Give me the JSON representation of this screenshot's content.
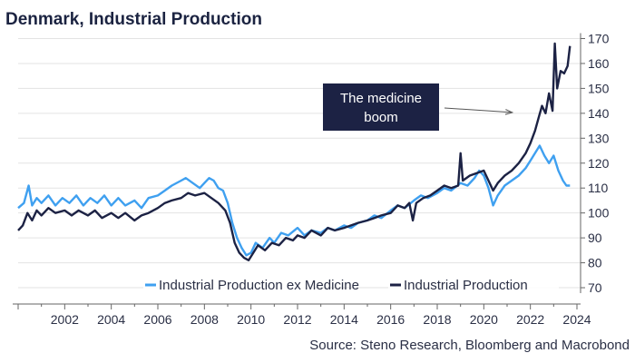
{
  "chart_data": {
    "type": "line",
    "title": "Denmark, Industrial Production",
    "source": "Source: Steno Research, Bloomberg and Macrobond",
    "xlim": [
      2000.0,
      2024.0
    ],
    "ylim": [
      66,
      172
    ],
    "x_ticks": [
      "2002",
      "2004",
      "2006",
      "2008",
      "2010",
      "2012",
      "2014",
      "2016",
      "2018",
      "2020",
      "2022",
      "2024"
    ],
    "y_ticks": [
      "70",
      "80",
      "90",
      "100",
      "110",
      "120",
      "130",
      "140",
      "150",
      "160",
      "170"
    ],
    "grid": "horizontal",
    "legend_position": "bottom-center",
    "annotation": {
      "lines": [
        "The medicine",
        "boom"
      ],
      "x": 2021.3,
      "y": 140
    },
    "series": [
      {
        "name": "Industrial Production ex Medicine",
        "color": "#3fa0f0",
        "points": [
          [
            2000.0,
            102
          ],
          [
            2000.25,
            104
          ],
          [
            2000.45,
            111
          ],
          [
            2000.6,
            103
          ],
          [
            2000.8,
            106
          ],
          [
            2001.0,
            104
          ],
          [
            2001.3,
            107
          ],
          [
            2001.6,
            103
          ],
          [
            2001.9,
            106
          ],
          [
            2002.2,
            104
          ],
          [
            2002.5,
            107
          ],
          [
            2002.8,
            103
          ],
          [
            2003.1,
            106
          ],
          [
            2003.4,
            104
          ],
          [
            2003.7,
            107
          ],
          [
            2004.0,
            103
          ],
          [
            2004.3,
            106
          ],
          [
            2004.6,
            103
          ],
          [
            2005.0,
            105
          ],
          [
            2005.3,
            102
          ],
          [
            2005.6,
            106
          ],
          [
            2006.0,
            107
          ],
          [
            2006.3,
            109
          ],
          [
            2006.6,
            111
          ],
          [
            2007.0,
            113
          ],
          [
            2007.2,
            114
          ],
          [
            2007.5,
            112
          ],
          [
            2007.8,
            110
          ],
          [
            2008.0,
            112
          ],
          [
            2008.2,
            114
          ],
          [
            2008.4,
            113
          ],
          [
            2008.6,
            110
          ],
          [
            2008.8,
            109
          ],
          [
            2009.0,
            104
          ],
          [
            2009.2,
            96
          ],
          [
            2009.4,
            90
          ],
          [
            2009.6,
            86
          ],
          [
            2009.8,
            83
          ],
          [
            2010.0,
            84
          ],
          [
            2010.2,
            88
          ],
          [
            2010.5,
            86
          ],
          [
            2010.8,
            90
          ],
          [
            2011.0,
            88
          ],
          [
            2011.3,
            92
          ],
          [
            2011.6,
            91
          ],
          [
            2012.0,
            94
          ],
          [
            2012.3,
            91
          ],
          [
            2012.6,
            93
          ],
          [
            2013.0,
            92
          ],
          [
            2013.3,
            94
          ],
          [
            2013.6,
            93
          ],
          [
            2014.0,
            95
          ],
          [
            2014.3,
            94
          ],
          [
            2014.6,
            96
          ],
          [
            2015.0,
            97
          ],
          [
            2015.3,
            99
          ],
          [
            2015.6,
            98
          ],
          [
            2016.0,
            101
          ],
          [
            2016.3,
            103
          ],
          [
            2016.6,
            102
          ],
          [
            2017.0,
            105
          ],
          [
            2017.3,
            107
          ],
          [
            2017.6,
            106
          ],
          [
            2018.0,
            108
          ],
          [
            2018.3,
            110
          ],
          [
            2018.6,
            109
          ],
          [
            2019.0,
            112
          ],
          [
            2019.3,
            111
          ],
          [
            2019.6,
            114
          ],
          [
            2019.8,
            117
          ],
          [
            2020.0,
            115
          ],
          [
            2020.2,
            110
          ],
          [
            2020.4,
            103
          ],
          [
            2020.6,
            107
          ],
          [
            2020.9,
            111
          ],
          [
            2021.2,
            113
          ],
          [
            2021.5,
            115
          ],
          [
            2021.8,
            118
          ],
          [
            2022.0,
            121
          ],
          [
            2022.2,
            124
          ],
          [
            2022.4,
            127
          ],
          [
            2022.6,
            123
          ],
          [
            2022.8,
            120
          ],
          [
            2023.0,
            123
          ],
          [
            2023.2,
            117
          ],
          [
            2023.4,
            113
          ],
          [
            2023.55,
            111
          ],
          [
            2023.7,
            111
          ]
        ]
      },
      {
        "name": "Industrial Production",
        "color": "#1c2244",
        "points": [
          [
            2000.0,
            93
          ],
          [
            2000.2,
            95
          ],
          [
            2000.4,
            100
          ],
          [
            2000.6,
            97
          ],
          [
            2000.8,
            101
          ],
          [
            2001.0,
            99
          ],
          [
            2001.3,
            102
          ],
          [
            2001.6,
            100
          ],
          [
            2002.0,
            101
          ],
          [
            2002.3,
            99
          ],
          [
            2002.6,
            101
          ],
          [
            2003.0,
            99
          ],
          [
            2003.3,
            101
          ],
          [
            2003.6,
            98
          ],
          [
            2004.0,
            100
          ],
          [
            2004.3,
            98
          ],
          [
            2004.6,
            100
          ],
          [
            2005.0,
            97
          ],
          [
            2005.3,
            99
          ],
          [
            2005.6,
            100
          ],
          [
            2006.0,
            102
          ],
          [
            2006.3,
            104
          ],
          [
            2006.6,
            105
          ],
          [
            2007.0,
            106
          ],
          [
            2007.3,
            108
          ],
          [
            2007.6,
            107
          ],
          [
            2008.0,
            108
          ],
          [
            2008.3,
            106
          ],
          [
            2008.6,
            104
          ],
          [
            2008.9,
            101
          ],
          [
            2009.1,
            96
          ],
          [
            2009.3,
            88
          ],
          [
            2009.5,
            84
          ],
          [
            2009.7,
            82
          ],
          [
            2009.9,
            81
          ],
          [
            2010.1,
            84
          ],
          [
            2010.3,
            87
          ],
          [
            2010.6,
            85
          ],
          [
            2010.9,
            88
          ],
          [
            2011.2,
            87
          ],
          [
            2011.5,
            90
          ],
          [
            2011.8,
            89
          ],
          [
            2012.0,
            91
          ],
          [
            2012.3,
            90
          ],
          [
            2012.6,
            93
          ],
          [
            2013.0,
            91
          ],
          [
            2013.3,
            94
          ],
          [
            2013.6,
            93
          ],
          [
            2014.0,
            94
          ],
          [
            2014.3,
            95
          ],
          [
            2014.6,
            96
          ],
          [
            2015.0,
            97
          ],
          [
            2015.3,
            98
          ],
          [
            2015.6,
            99
          ],
          [
            2016.0,
            100
          ],
          [
            2016.3,
            103
          ],
          [
            2016.6,
            102
          ],
          [
            2016.8,
            104
          ],
          [
            2016.95,
            97
          ],
          [
            2017.1,
            104
          ],
          [
            2017.4,
            106
          ],
          [
            2017.7,
            107
          ],
          [
            2018.0,
            109
          ],
          [
            2018.3,
            111
          ],
          [
            2018.6,
            110
          ],
          [
            2018.9,
            111
          ],
          [
            2019.0,
            124
          ],
          [
            2019.1,
            113
          ],
          [
            2019.4,
            115
          ],
          [
            2019.7,
            116
          ],
          [
            2020.0,
            117
          ],
          [
            2020.2,
            113
          ],
          [
            2020.4,
            109
          ],
          [
            2020.6,
            112
          ],
          [
            2020.9,
            115
          ],
          [
            2021.2,
            117
          ],
          [
            2021.5,
            120
          ],
          [
            2021.8,
            124
          ],
          [
            2022.0,
            128
          ],
          [
            2022.2,
            133
          ],
          [
            2022.35,
            138
          ],
          [
            2022.5,
            143
          ],
          [
            2022.65,
            140
          ],
          [
            2022.8,
            148
          ],
          [
            2022.95,
            141
          ],
          [
            2023.05,
            168
          ],
          [
            2023.15,
            150
          ],
          [
            2023.3,
            157
          ],
          [
            2023.45,
            156
          ],
          [
            2023.6,
            159
          ],
          [
            2023.7,
            167
          ]
        ]
      }
    ]
  }
}
